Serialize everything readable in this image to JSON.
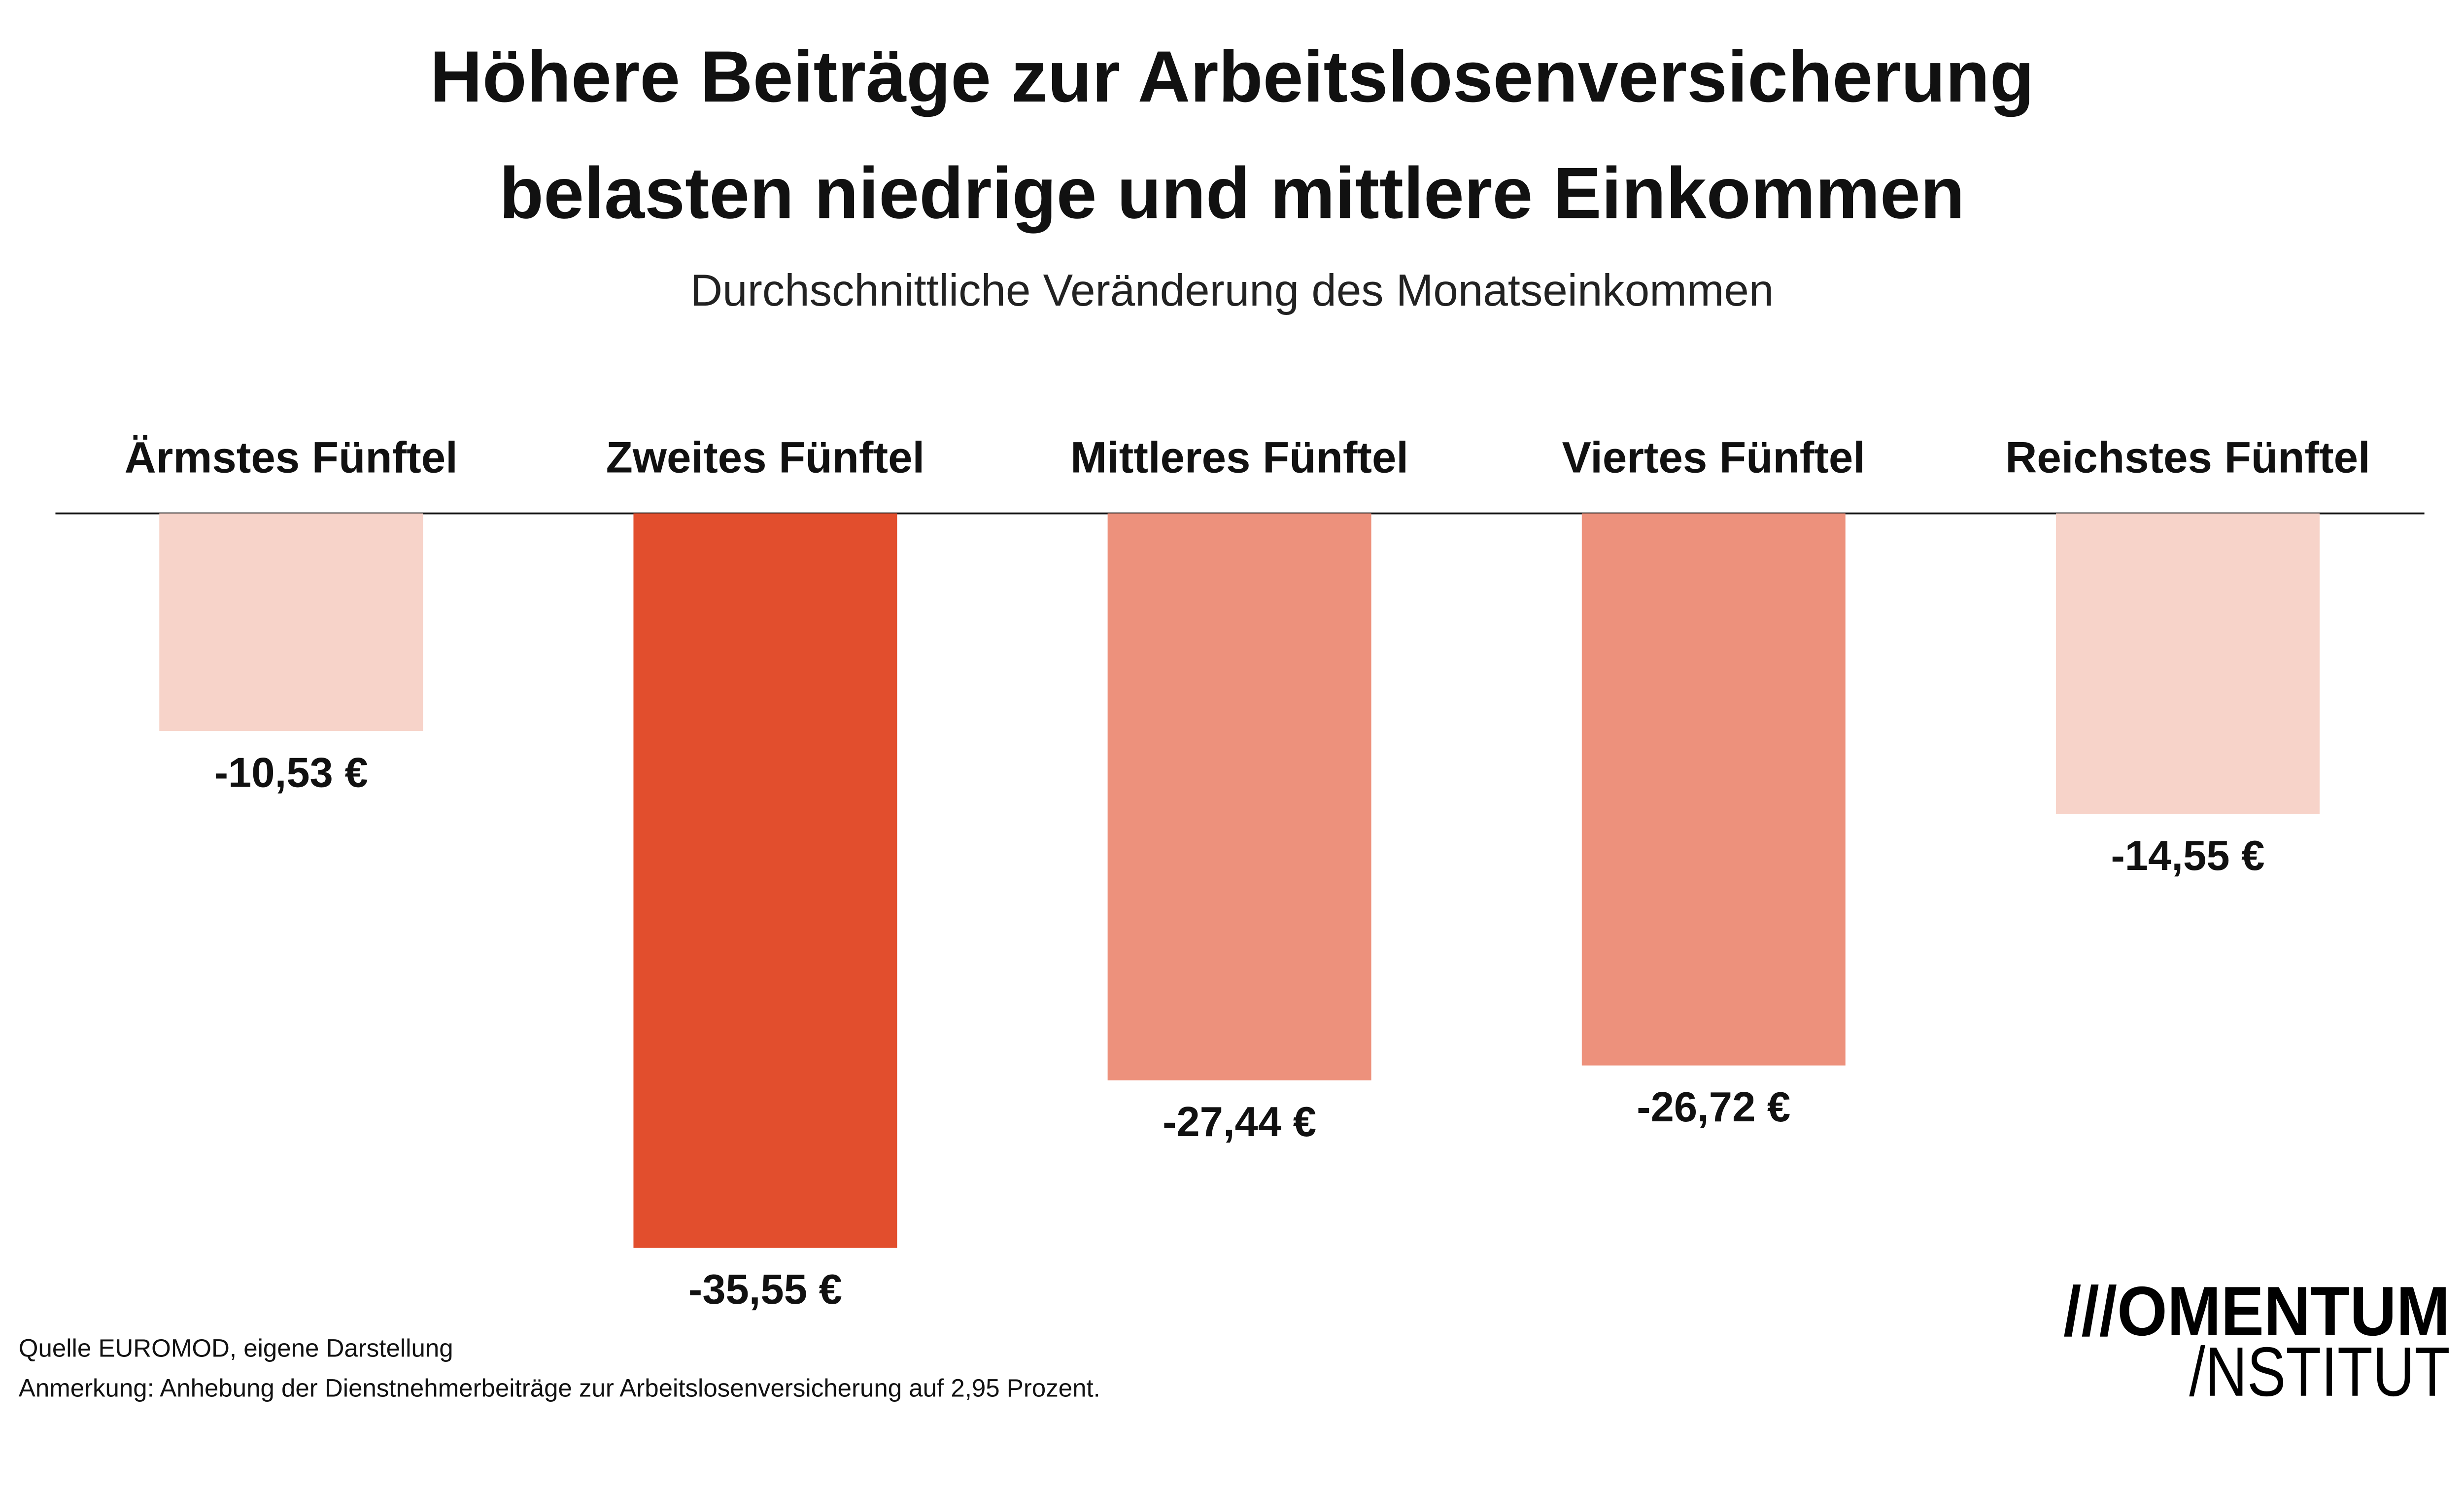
{
  "chart_data": {
    "type": "bar",
    "title": "Höhere Beiträge zur Arbeitslosenversicherung belasten niedrige und mittlere Einkommen",
    "title_lines": [
      "Höhere Beiträge zur Arbeitslosenversicherung",
      "belasten niedrige und mittlere Einkommen"
    ],
    "subtitle": "Durchschnittliche Veränderung des Monatseinkommen",
    "xlabel": "",
    "ylabel": "",
    "ylim": [
      -35.55,
      0
    ],
    "grid": false,
    "legend": "none",
    "categories": [
      "Ärmstes Fünftel",
      "Zweites Fünftel",
      "Mittleres Fünftel",
      "Viertes Fünftel",
      "Reichstes Fünftel"
    ],
    "values": [
      -10.53,
      -35.55,
      -27.44,
      -26.72,
      -14.55
    ],
    "data_labels": [
      "-10,53 €",
      "-35,55 €",
      "-27,44 €",
      "-26,72 €",
      "-14,55 €"
    ],
    "colors": [
      "#F7D3C9",
      "#E24E2D",
      "#ED917C",
      "#ED917C",
      "#F7D3C9"
    ]
  },
  "footer": {
    "source": "Quelle EUROMOD, eigene Darstellung",
    "note": "Anmerkung: Anhebung der Dienstnehmerbeiträge zur Arbeitslosenversicherung auf 2,95 Prozent."
  },
  "logo": {
    "line1": "///OMENTUM",
    "line2": "/NSTITUT"
  }
}
